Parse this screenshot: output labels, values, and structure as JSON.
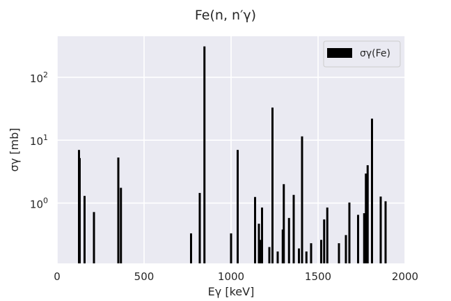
{
  "chart_data": {
    "type": "bar",
    "title": "Fe(n, n′γ)",
    "xlabel": "Eγ [keV]",
    "ylabel": "σγ [mb]",
    "xlim": [
      0,
      2000
    ],
    "ylim": [
      0.11,
      450
    ],
    "yscale": "log",
    "grid": true,
    "legend_position": "top-right",
    "x_ticks": [
      {
        "value": 0,
        "label": "0"
      },
      {
        "value": 500,
        "label": "500"
      },
      {
        "value": 1000,
        "label": "1000"
      },
      {
        "value": 1500,
        "label": "1500"
      },
      {
        "value": 2000,
        "label": "2000"
      }
    ],
    "y_ticks": [
      {
        "value": 1,
        "base": "10",
        "exp": "0"
      },
      {
        "value": 10,
        "base": "10",
        "exp": "1"
      },
      {
        "value": 100,
        "base": "10",
        "exp": "2"
      }
    ],
    "series": [
      {
        "name": "σγ(Fe)",
        "color": "#000000",
        "points": [
          {
            "x": 126,
            "y": 7.0
          },
          {
            "x": 130,
            "y": 5.2
          },
          {
            "x": 158,
            "y": 1.3
          },
          {
            "x": 212,
            "y": 0.72
          },
          {
            "x": 352,
            "y": 5.3
          },
          {
            "x": 367,
            "y": 1.75
          },
          {
            "x": 770,
            "y": 0.33
          },
          {
            "x": 820,
            "y": 1.45
          },
          {
            "x": 847,
            "y": 310
          },
          {
            "x": 1000,
            "y": 0.33
          },
          {
            "x": 1038,
            "y": 7.0
          },
          {
            "x": 1138,
            "y": 1.25
          },
          {
            "x": 1160,
            "y": 0.47
          },
          {
            "x": 1170,
            "y": 0.26
          },
          {
            "x": 1178,
            "y": 0.85
          },
          {
            "x": 1220,
            "y": 0.2
          },
          {
            "x": 1238,
            "y": 33
          },
          {
            "x": 1268,
            "y": 0.17
          },
          {
            "x": 1297,
            "y": 0.38
          },
          {
            "x": 1303,
            "y": 2.0
          },
          {
            "x": 1333,
            "y": 0.58
          },
          {
            "x": 1360,
            "y": 1.35
          },
          {
            "x": 1390,
            "y": 0.19
          },
          {
            "x": 1408,
            "y": 11.5
          },
          {
            "x": 1433,
            "y": 0.17
          },
          {
            "x": 1460,
            "y": 0.23
          },
          {
            "x": 1518,
            "y": 0.26
          },
          {
            "x": 1535,
            "y": 0.55
          },
          {
            "x": 1553,
            "y": 0.85
          },
          {
            "x": 1620,
            "y": 0.23
          },
          {
            "x": 1660,
            "y": 0.31
          },
          {
            "x": 1680,
            "y": 1.02
          },
          {
            "x": 1730,
            "y": 0.65
          },
          {
            "x": 1765,
            "y": 0.69
          },
          {
            "x": 1775,
            "y": 2.95
          },
          {
            "x": 1785,
            "y": 4.0
          },
          {
            "x": 1810,
            "y": 22
          },
          {
            "x": 1860,
            "y": 1.27
          },
          {
            "x": 1888,
            "y": 1.07
          }
        ]
      }
    ]
  }
}
